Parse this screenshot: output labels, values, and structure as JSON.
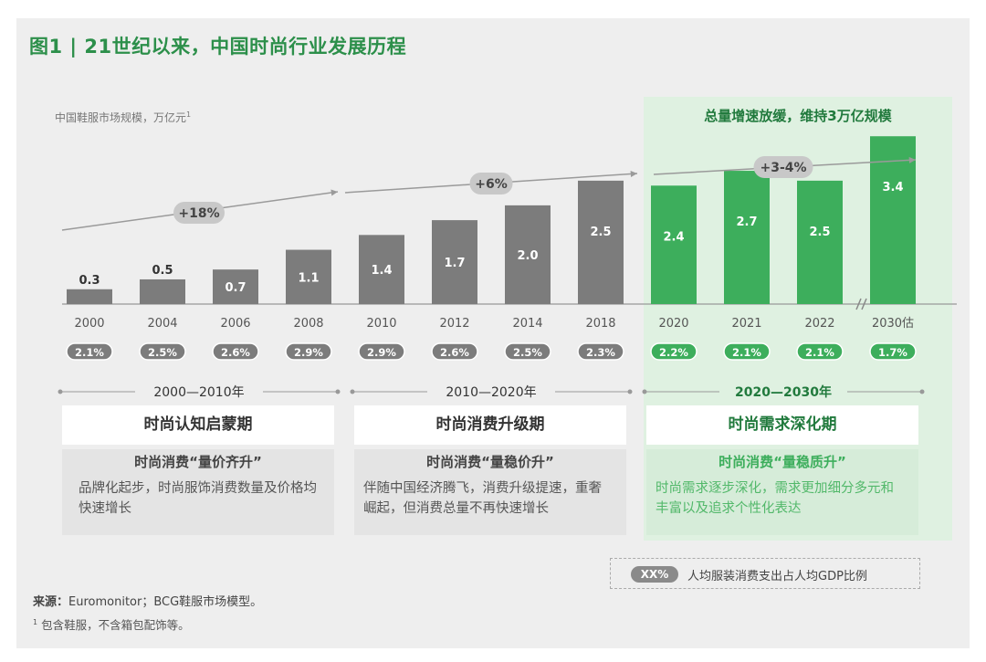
{
  "figure_title": "图1 | 21世纪以来，中国时尚行业发展历程",
  "colors": {
    "gray_bar": "#7c7c7c",
    "green_bar": "#3dae5c",
    "green_text": "#217a3d",
    "panel_green": "#dff1e1"
  },
  "chart_data": {
    "type": "bar",
    "title": "",
    "ylabel": "中国鞋服市场规模，万亿元",
    "ylabel_sup": "1",
    "categories": [
      "2000",
      "2004",
      "2006",
      "2008",
      "2010",
      "2012",
      "2014",
      "2018",
      "2020",
      "2021",
      "2022",
      "2030估"
    ],
    "values": [
      0.3,
      0.5,
      0.7,
      1.1,
      1.4,
      1.7,
      2.0,
      2.5,
      2.4,
      2.7,
      2.5,
      3.4
    ],
    "value_labels": [
      "0.3",
      "0.5",
      "0.7",
      "1.1",
      "1.4",
      "1.7",
      "2.0",
      "2.5",
      "2.4",
      "2.7",
      "2.5",
      "3.4"
    ],
    "bar_colors": [
      "gray",
      "gray",
      "gray",
      "gray",
      "gray",
      "gray",
      "gray",
      "gray",
      "green",
      "green",
      "green",
      "green"
    ],
    "gdp_share_labels": [
      "2.1%",
      "2.5%",
      "2.6%",
      "2.9%",
      "2.9%",
      "2.6%",
      "2.5%",
      "2.3%",
      "2.2%",
      "2.1%",
      "2.1%",
      "1.7%"
    ],
    "axis_break_before": "2030估",
    "ylim": [
      0,
      3.7
    ],
    "growth_annotations": [
      "+18%",
      "+6%",
      "+3-4%"
    ],
    "grid": false,
    "legend": "bottom-right"
  },
  "green_panel_title": "总量增速放缓，维持3万亿规模",
  "periods": [
    {
      "range": "2000—2010年",
      "name": "时尚认知启蒙期",
      "theme": "时尚消费“量价齐升”",
      "desc": "品牌化起步，时尚服饰消费数量及价格均快速增长"
    },
    {
      "range": "2010—2020年",
      "name": "时尚消费升级期",
      "theme": "时尚消费“量稳价升”",
      "desc": "伴随中国经济腾飞，消费升级提速，重奢崛起，但消费总量不再快速增长"
    },
    {
      "range": "2020—2030年",
      "name": "时尚需求深化期",
      "theme": "时尚消费“量稳质升”",
      "desc": "时尚需求逐步深化，需求更加细分多元和丰富以及追求个性化表达"
    }
  ],
  "legend": {
    "badge": "XX%",
    "text": "人均服装消费支出占人均GDP比例"
  },
  "source": {
    "label": "来源：",
    "text": "Euromonitor；BCG鞋服市场模型。"
  },
  "footnote": {
    "mark": "1",
    "text": "包含鞋服，不含箱包配饰等。"
  }
}
